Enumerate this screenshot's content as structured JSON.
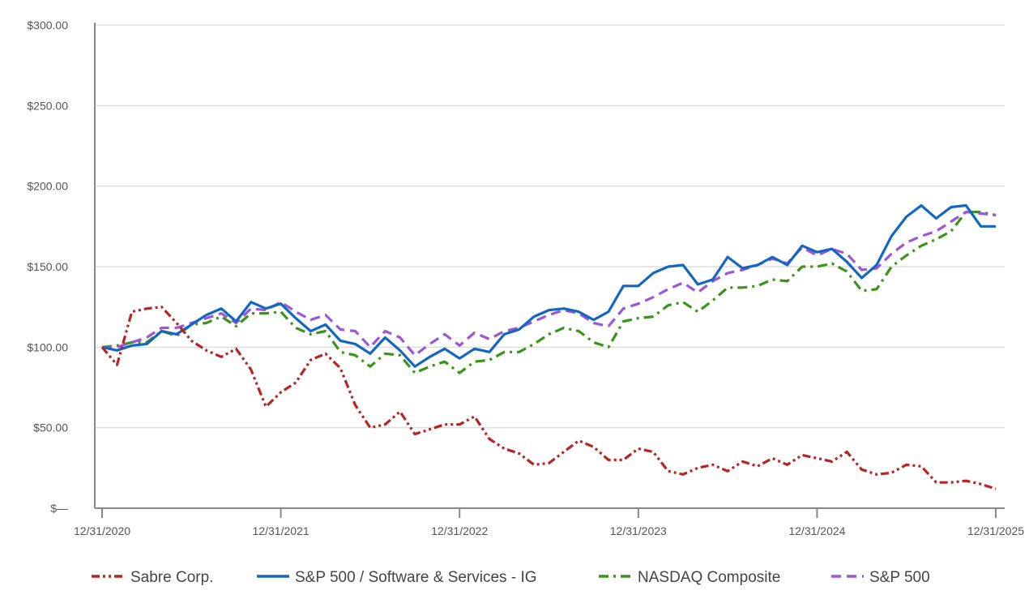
{
  "chart_data": {
    "type": "line",
    "title": "",
    "xlabel": "",
    "ylabel": "",
    "ylim": [
      0,
      300
    ],
    "y_ticks": [
      {
        "value": 0,
        "label": "$—"
      },
      {
        "value": 50,
        "label": "$50.00"
      },
      {
        "value": 100,
        "label": "$100.00"
      },
      {
        "value": 150,
        "label": "$150.00"
      },
      {
        "value": 200,
        "label": "$200.00"
      },
      {
        "value": 250,
        "label": "$250.00"
      },
      {
        "value": 300,
        "label": "$300.00"
      }
    ],
    "x_ticks": [
      {
        "value": 0,
        "label": "12/31/2020"
      },
      {
        "value": 12,
        "label": "12/31/2021"
      },
      {
        "value": 24,
        "label": "12/31/2022"
      },
      {
        "value": 36,
        "label": "12/31/2023"
      },
      {
        "value": 48,
        "label": "12/31/2024"
      },
      {
        "value": 60,
        "label": "12/31/2025"
      }
    ],
    "x_range": [
      0,
      60
    ],
    "grid": true,
    "legend_position": "bottom",
    "series": [
      {
        "name": "Sabre Corp.",
        "color": "#b82323",
        "dash": "dash-dot-dot",
        "values": [
          100,
          89,
          122,
          124,
          125,
          115,
          104,
          98,
          94,
          99,
          86,
          63,
          72,
          78,
          92,
          96,
          87,
          64,
          50,
          52,
          60,
          46,
          49,
          52,
          52,
          57,
          43,
          37,
          34,
          27,
          28,
          35,
          42,
          38,
          30,
          30,
          37,
          35,
          23,
          21,
          25,
          27,
          23,
          29,
          26,
          31,
          27,
          33,
          31,
          29,
          35,
          24,
          21,
          22,
          27,
          26,
          16,
          16,
          17,
          15,
          12
        ]
      },
      {
        "name": "S&P 500 / Software & Services - IG",
        "color": "#1566c0",
        "dash": "solid",
        "values": [
          100,
          98,
          101,
          102,
          110,
          108,
          114,
          120,
          124,
          116,
          128,
          124,
          127,
          118,
          110,
          114,
          104,
          102,
          96,
          106,
          98,
          88,
          94,
          99,
          93,
          99,
          97,
          108,
          111,
          119,
          123,
          124,
          122,
          117,
          122,
          138,
          138,
          146,
          150,
          151,
          139,
          142,
          156,
          149,
          151,
          156,
          151,
          163,
          159,
          161,
          153,
          143,
          151,
          169,
          181,
          188,
          180,
          187,
          188,
          175,
          175
        ]
      },
      {
        "name": "NASDAQ Composite",
        "color": "#3a9418",
        "dash": "dash-dot",
        "values": [
          100,
          101,
          103,
          103,
          110,
          107,
          114,
          115,
          119,
          113,
          121,
          121,
          122,
          112,
          108,
          110,
          97,
          95,
          88,
          96,
          95,
          84,
          88,
          91,
          84,
          91,
          92,
          97,
          97,
          102,
          108,
          112,
          110,
          103,
          100,
          116,
          118,
          119,
          126,
          128,
          122,
          129,
          137,
          137,
          138,
          142,
          141,
          150,
          150,
          152,
          147,
          135,
          136,
          150,
          157,
          163,
          167,
          172,
          184,
          184,
          182
        ]
      },
      {
        "name": "S&P 500",
        "color": "#9b57d6",
        "dash": "dash",
        "values": [
          100,
          100,
          103,
          106,
          112,
          112,
          115,
          118,
          121,
          115,
          124,
          123,
          128,
          122,
          117,
          120,
          111,
          110,
          100,
          110,
          106,
          95,
          102,
          108,
          101,
          109,
          105,
          110,
          112,
          116,
          120,
          123,
          121,
          115,
          113,
          124,
          127,
          131,
          136,
          140,
          134,
          141,
          146,
          148,
          151,
          155,
          152,
          162,
          157,
          161,
          158,
          148,
          149,
          158,
          165,
          169,
          172,
          178,
          184,
          183,
          182
        ]
      }
    ]
  }
}
